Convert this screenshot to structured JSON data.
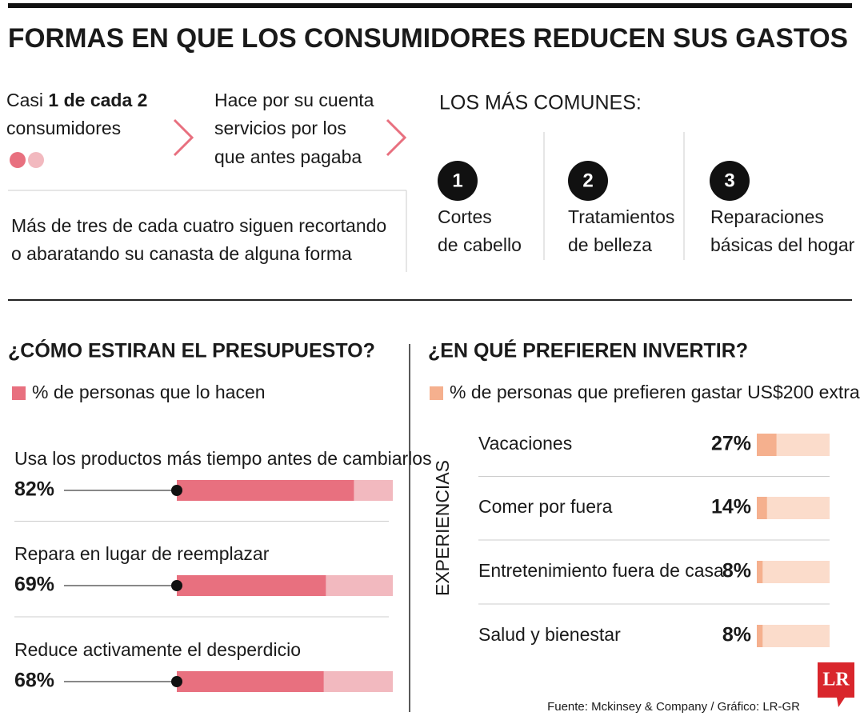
{
  "title": "FORMAS EN QUE LOS CONSUMIDORES REDUCEN SUS GASTOS",
  "intro": {
    "prefix": "Casi",
    "highlight": "1 de cada 2",
    "suffix": "consumidores",
    "action_lines": [
      "Hace por su cuenta",
      "servicios por los",
      "que antes pagaba"
    ],
    "note_lines": [
      "Más de tres de cada cuatro siguen recortando",
      "o abaratando su canasta de alguna forma"
    ]
  },
  "common": {
    "title": "LOS MÁS COMUNES:",
    "items": [
      {
        "rank": 1,
        "lines": [
          "Cortes",
          "de cabello"
        ]
      },
      {
        "rank": 2,
        "lines": [
          "Tratamientos",
          "de belleza"
        ]
      },
      {
        "rank": 3,
        "lines": [
          "Reparaciones",
          "básicas del hogar"
        ]
      }
    ]
  },
  "chart_data": [
    {
      "type": "bar",
      "orientation": "horizontal",
      "title": "¿CÓMO ESTIRAN EL PRESUPUESTO?",
      "categories": [
        "Usa los productos más tiempo antes de cambiarlos",
        "Repara en lugar de reemplazar",
        "Reduce activamente el desperdicio"
      ],
      "series": [
        {
          "name": "% de personas que lo hacen",
          "color": "#e8707f",
          "track_color": "#f2b9bf",
          "values": [
            82,
            69,
            68
          ],
          "value_labels": [
            "82%",
            "69%",
            "68%"
          ]
        }
      ],
      "xlim": [
        0,
        100
      ]
    },
    {
      "type": "bar",
      "orientation": "horizontal",
      "title": "¿EN QUÉ PREFIEREN INVERTIR?",
      "group_label": "EXPERIENCIAS",
      "categories": [
        "Vacaciones",
        "Comer por fuera",
        "Entretenimiento fuera de casa",
        "Salud y bienestar"
      ],
      "series": [
        {
          "name": "% de personas que prefieren gastar US$200 extra",
          "color": "#f5b08e",
          "track_color": "#fbdccb",
          "values": [
            27,
            14,
            8,
            8
          ],
          "value_labels": [
            "27%",
            "14%",
            "8%",
            "8%"
          ]
        }
      ],
      "xlim": [
        0,
        100
      ]
    }
  ],
  "source": "Fuente: Mckinsey & Company / Gráfico: LR-GR",
  "logo": "LR"
}
